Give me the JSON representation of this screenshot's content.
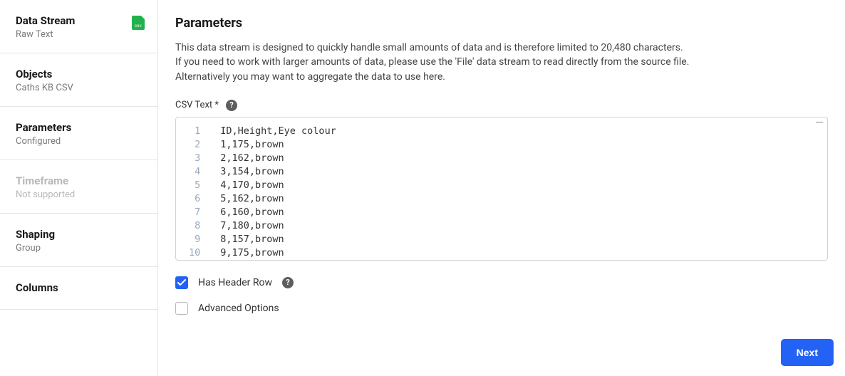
{
  "sidebar": {
    "items": [
      {
        "title": "Data Stream",
        "sub": "Raw Text",
        "hasIcon": true
      },
      {
        "title": "Objects",
        "sub": "Caths KB CSV"
      },
      {
        "title": "Parameters",
        "sub": "Configured"
      },
      {
        "title": "Timeframe",
        "sub": "Not supported",
        "disabled": true
      },
      {
        "title": "Shaping",
        "sub": "Group"
      },
      {
        "title": "Columns",
        "sub": ""
      }
    ]
  },
  "main": {
    "title": "Parameters",
    "desc_line1": "This data stream is designed to quickly handle small amounts of data and is therefore limited to 20,480 characters.",
    "desc_line2": "If you need to work with larger amounts of data, please use the 'File' data stream to read directly from the source file.",
    "desc_line3": "Alternatively you may want to aggregate the data to use here.",
    "csv_field_label": "CSV Text *",
    "help_glyph": "?",
    "csv_lines": [
      "ID,Height,Eye colour",
      "1,175,brown",
      "2,162,brown",
      "3,154,brown",
      "4,170,brown",
      "5,162,brown",
      "6,160,brown",
      "7,180,brown",
      "8,157,brown",
      "9,175,brown"
    ],
    "has_header_label": "Has Header Row",
    "has_header_checked": true,
    "advanced_label": "Advanced Options",
    "advanced_checked": false,
    "next_label": "Next"
  },
  "colors": {
    "accent": "#2462f6",
    "icon_green": "#22b14c",
    "gutter_text": "#9aa8bf",
    "border": "#d3d3d3"
  }
}
